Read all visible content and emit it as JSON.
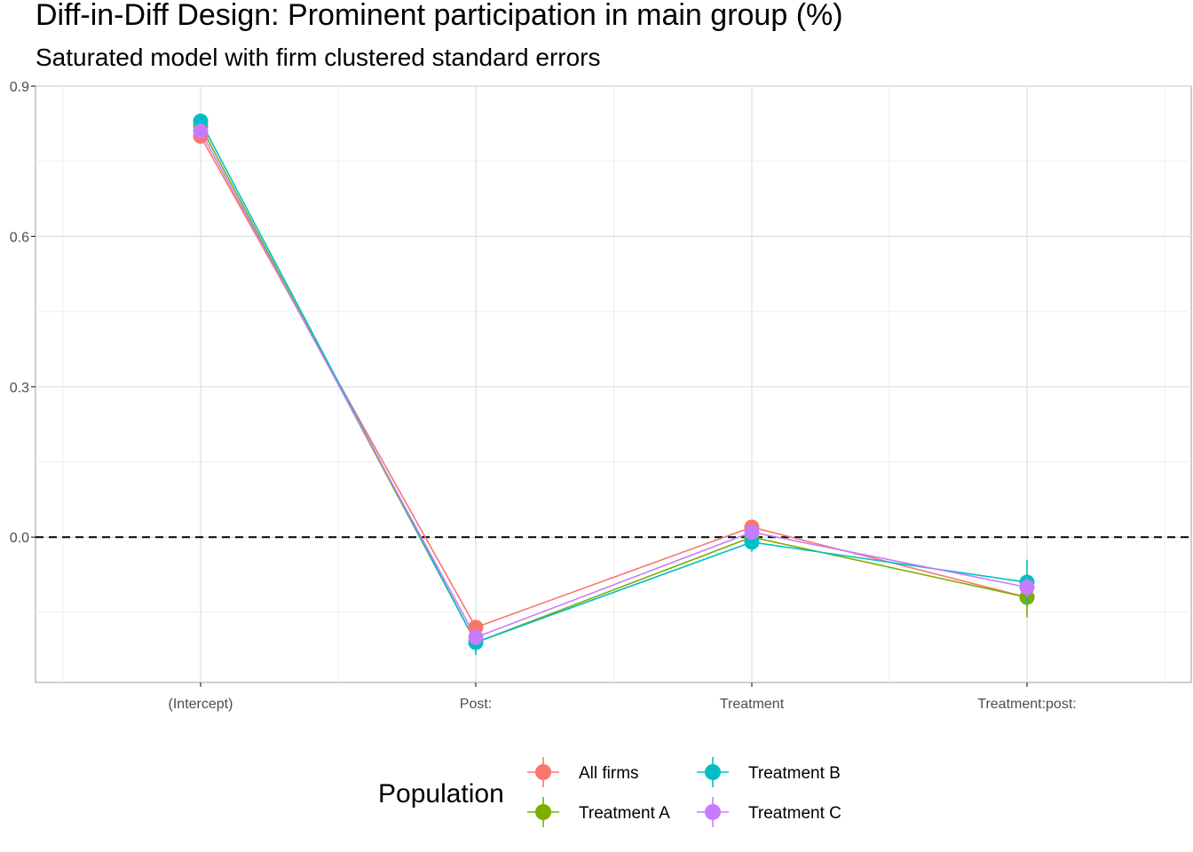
{
  "chart_data": {
    "type": "line",
    "title": "Diff-in-Diff Design: Prominent participation in main group (%)",
    "subtitle": "Saturated model with firm clustered standard errors",
    "xlabel": "",
    "ylabel": "",
    "categories": [
      "(Intercept)",
      "Post:",
      "Treatment",
      "Treatment:post:"
    ],
    "ylim": [
      -0.29,
      0.9
    ],
    "yticks": [
      0.0,
      0.3,
      0.6,
      0.9
    ],
    "ytick_labels": [
      "0.0",
      "0.3",
      "0.6",
      "0.9"
    ],
    "reference_line": 0.0,
    "grid": true,
    "legend": {
      "title": "Population",
      "position": "bottom"
    },
    "series": [
      {
        "name": "All firms",
        "color": "#F8766D",
        "values": [
          0.8,
          -0.18,
          0.02,
          -0.12
        ],
        "err": [
          0.01,
          0.015,
          0.015,
          0.02
        ]
      },
      {
        "name": "Treatment A",
        "color": "#7CAE00",
        "values": [
          0.82,
          -0.21,
          0.0,
          -0.12
        ],
        "err": [
          0.015,
          0.02,
          0.02,
          0.04
        ]
      },
      {
        "name": "Treatment B",
        "color": "#00BFC4",
        "values": [
          0.83,
          -0.21,
          -0.01,
          -0.09
        ],
        "err": [
          0.015,
          0.025,
          0.02,
          0.045
        ]
      },
      {
        "name": "Treatment C",
        "color": "#C77CFF",
        "values": [
          0.81,
          -0.2,
          0.01,
          -0.1
        ],
        "err": [
          0.01,
          0.015,
          0.015,
          0.02
        ]
      }
    ]
  }
}
